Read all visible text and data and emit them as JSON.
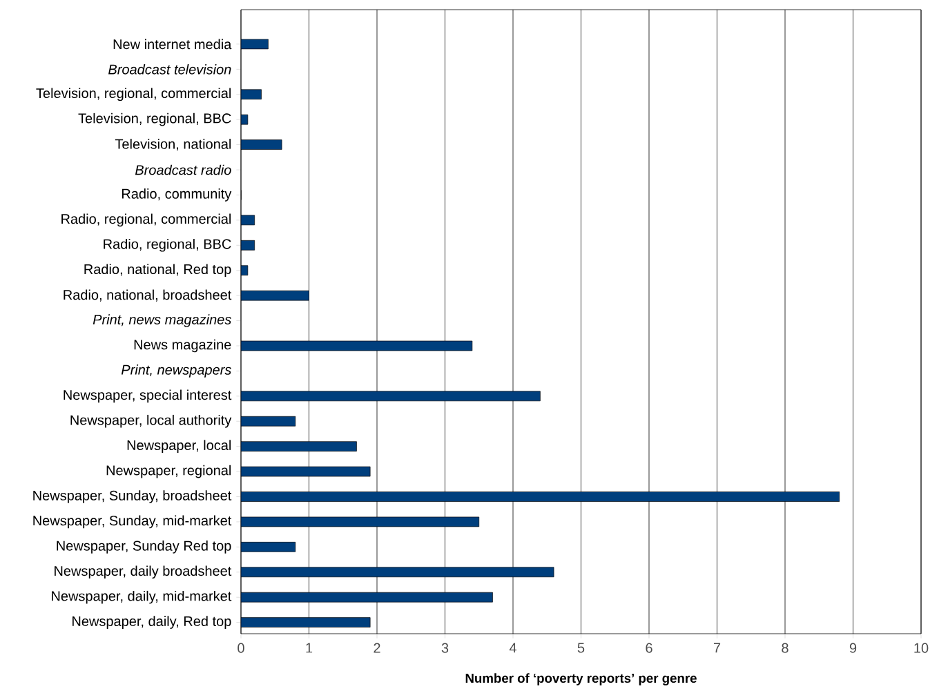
{
  "chart_data": {
    "type": "bar",
    "orientation": "horizontal",
    "xlabel": "Number of ‘poverty reports’ per genre",
    "categories": [
      "New internet media",
      "Broadcast television",
      "Television, regional, commercial",
      "Television, regional, BBC",
      "Television, national",
      "Broadcast radio",
      "Radio, community",
      "Radio, regional, commercial",
      "Radio, regional, BBC",
      "Radio, national, Red top",
      "Radio, national, broadsheet",
      "Print, news magazines",
      "News magazine",
      "Print, newspapers",
      "Newspaper, special interest",
      "Newspaper, local authority",
      "Newspaper, local",
      "Newspaper, regional",
      "Newspaper, Sunday, broadsheet",
      "Newspaper, Sunday, mid-market",
      "Newspaper, Sunday Red top",
      "Newspaper, daily broadsheet",
      "Newspaper, daily, mid-market",
      "Newspaper, daily, Red top"
    ],
    "values": [
      0.4,
      null,
      0.3,
      0.1,
      0.6,
      null,
      0,
      0.2,
      0.2,
      0.1,
      1.0,
      null,
      3.4,
      null,
      4.4,
      0.8,
      1.7,
      1.9,
      8.8,
      3.5,
      0.8,
      4.6,
      3.7,
      1.9
    ],
    "color": "#003f7d",
    "xlim": [
      0,
      10
    ],
    "xticks": [
      0,
      1,
      2,
      3,
      4,
      5,
      6,
      7,
      8,
      9,
      10
    ],
    "grid": "x"
  }
}
